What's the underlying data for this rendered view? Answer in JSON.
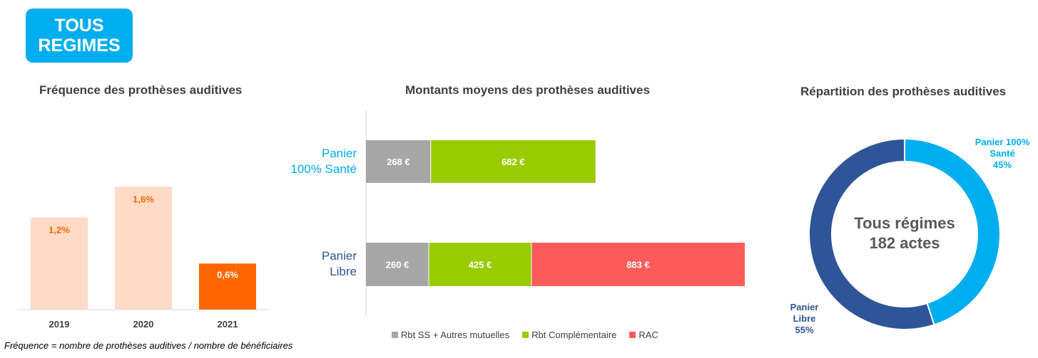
{
  "badge": {
    "line1": "TOUS",
    "line2": "REGIMES"
  },
  "footnote": "Fréquence = nombre de prothèses auditives / nombre de bénéficiaires",
  "colors": {
    "badge": "#00aeef",
    "bar_light": "#fddbc6",
    "bar_dark": "#ff6600",
    "bar_label_orange": "#ff6600",
    "gray": "#a6a6a6",
    "green": "#99cc00",
    "red": "#ff5b5b",
    "light_blue": "#00aeef",
    "dark_blue": "#2e5597"
  },
  "chart_data": [
    {
      "type": "bar",
      "title": "Fréquence des prothèses auditives",
      "categories": [
        "2019",
        "2020",
        "2021"
      ],
      "values": [
        1.2,
        1.6,
        0.6
      ],
      "value_labels": [
        "1,2%",
        "1,6%",
        "0,6%"
      ],
      "ylim": [
        0,
        1.9
      ]
    },
    {
      "type": "bar",
      "orientation": "horizontal",
      "stacked": true,
      "title": "Montants moyens des prothèses auditives",
      "categories": [
        "Panier 100% Santé",
        "Panier Libre"
      ],
      "category_lines": [
        [
          "Panier",
          "100% Santé"
        ],
        [
          "Panier",
          "Libre"
        ]
      ],
      "series": [
        {
          "name": "Rbt SS + Autres mutuelles",
          "values": [
            268,
            260
          ],
          "labels": [
            "268 €",
            "260 €"
          ]
        },
        {
          "name": "Rbt Complémentaire",
          "values": [
            682,
            425
          ],
          "labels": [
            "682 €",
            "425 €"
          ]
        },
        {
          "name": "RAC",
          "values": [
            0,
            883
          ],
          "labels": [
            "",
            "883 €"
          ]
        }
      ],
      "xlim": [
        0,
        1568
      ],
      "legend": "bottom"
    },
    {
      "type": "pie",
      "donut": true,
      "title": "Répartition des prothèses auditives",
      "center_line1": "Tous régimes",
      "center_line2": "182 actes",
      "slices": [
        {
          "lines": [
            "Panier 100%",
            "Santé",
            "45%"
          ],
          "value": 45
        },
        {
          "lines": [
            "Panier",
            "Libre",
            "55%"
          ],
          "value": 55
        }
      ]
    }
  ]
}
